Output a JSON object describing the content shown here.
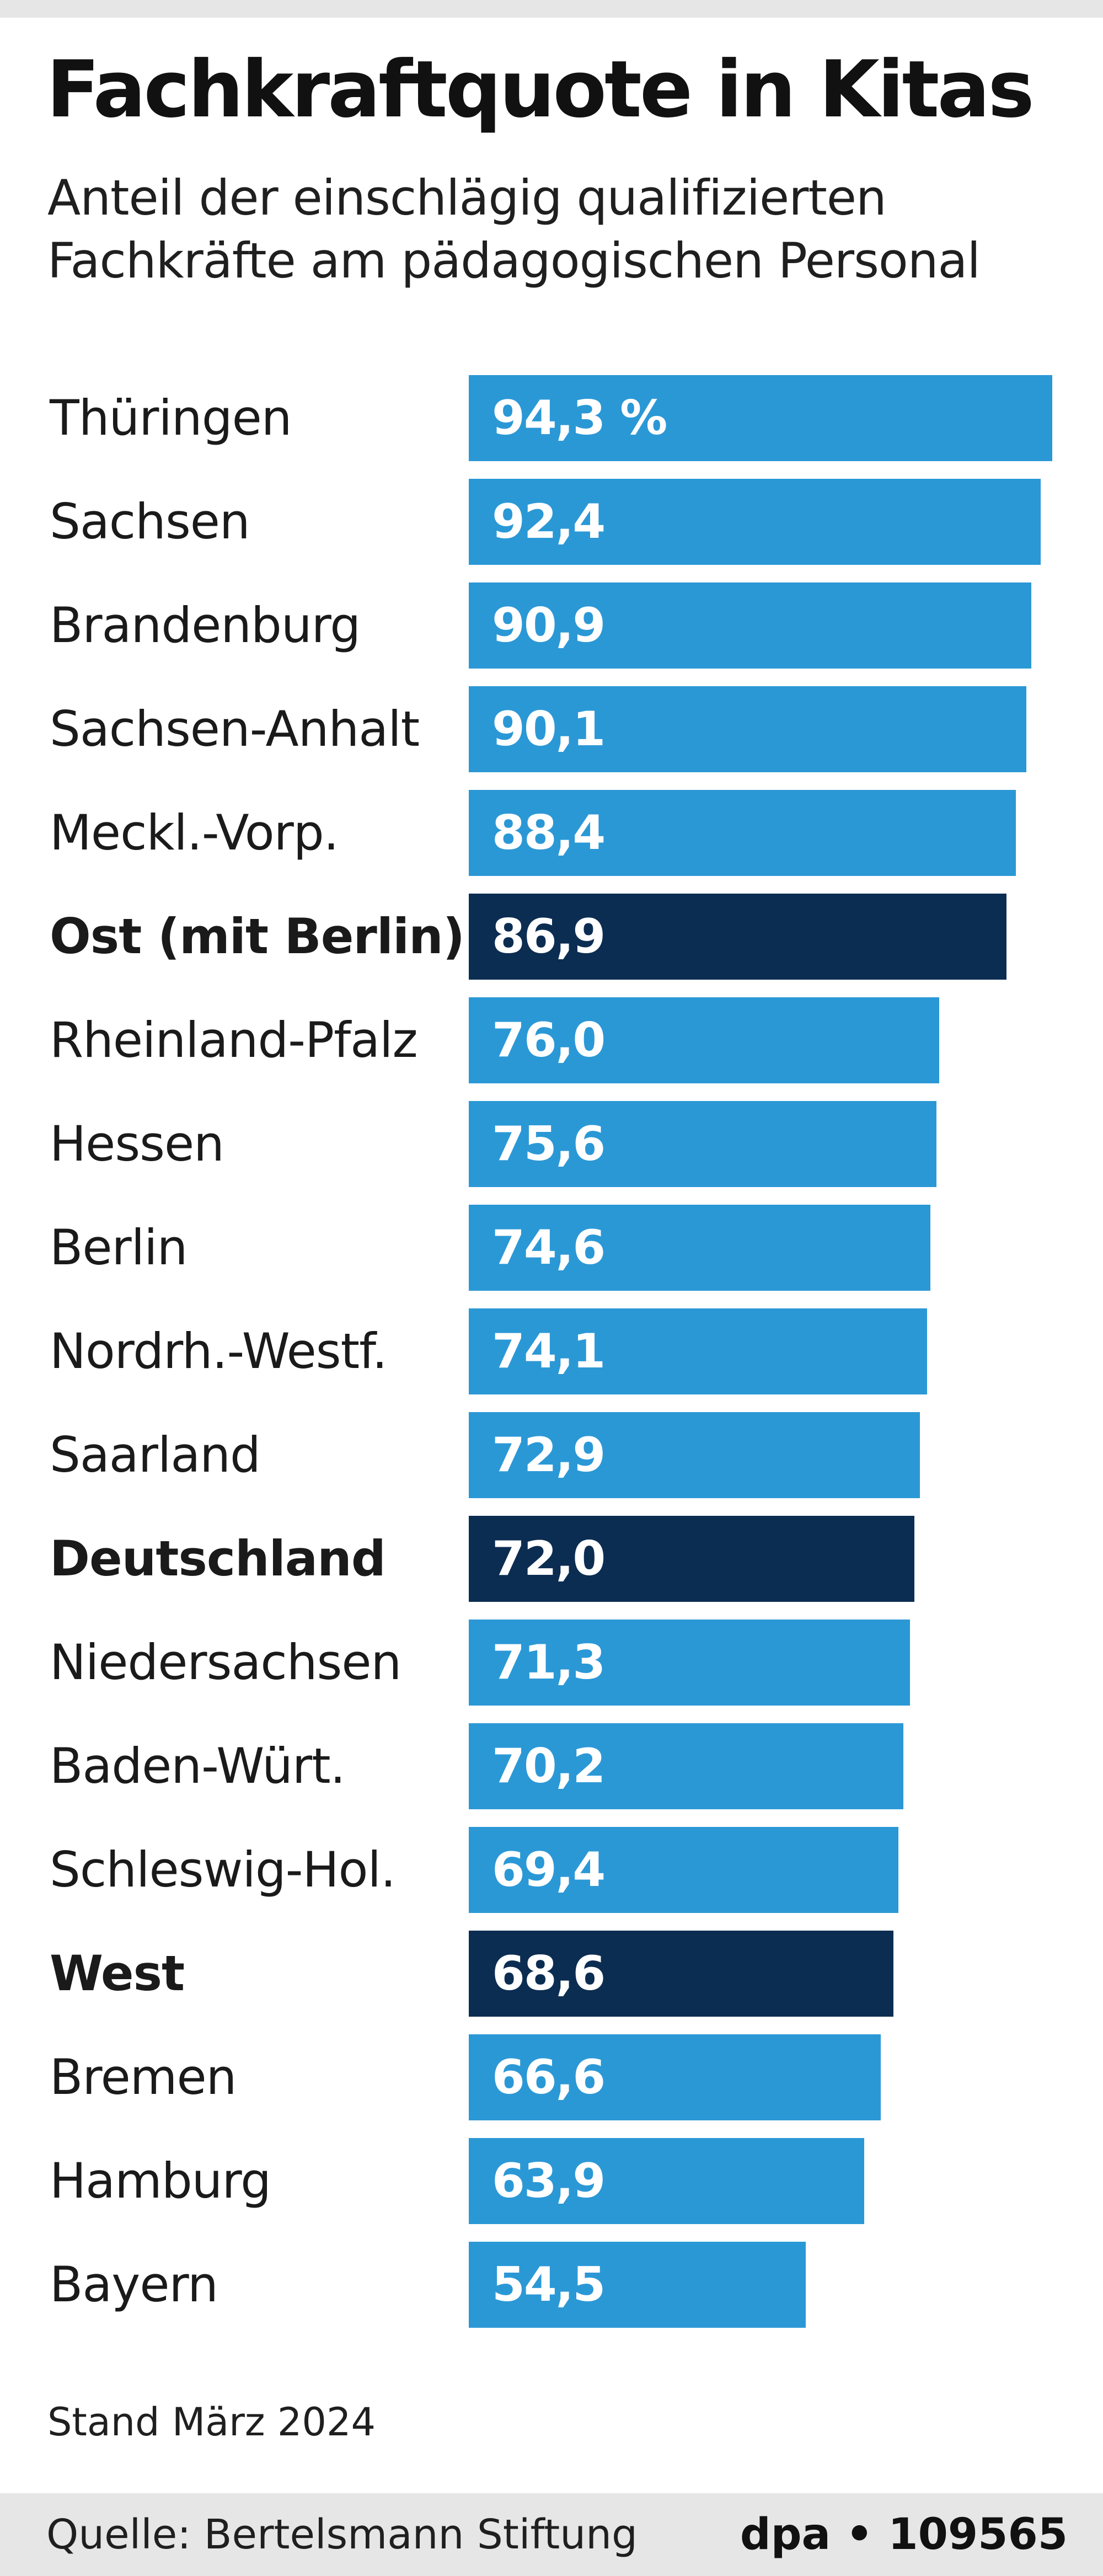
{
  "header": {
    "title": "Fachkraftquote in Kitas",
    "subtitle_line1": "Anteil der einschlägig qualifizierten",
    "subtitle_line2": "Fachkräfte am pädagogischen Personal"
  },
  "chart_data": {
    "type": "bar",
    "orientation": "horizontal",
    "title": "Fachkraftquote in Kitas",
    "subtitle": "Anteil der einschlägig qualifizierten Fachkräfte am pädagogischen Personal",
    "unit": "%",
    "categories": [
      "Thüringen",
      "Sachsen",
      "Brandenburg",
      "Sachsen-Anhalt",
      "Meckl.-Vorp.",
      "Ost (mit Berlin)",
      "Rheinland-Pfalz",
      "Hessen",
      "Berlin",
      "Nordrh.-Westf.",
      "Saarland",
      "Deutschland",
      "Niedersachsen",
      "Baden-Würt.",
      "Schleswig-Hol.",
      "West",
      "Bremen",
      "Hamburg",
      "Bayern"
    ],
    "values": [
      94.3,
      92.4,
      90.9,
      90.1,
      88.4,
      86.9,
      76.0,
      75.6,
      74.6,
      74.1,
      72.9,
      72.0,
      71.3,
      70.2,
      69.4,
      68.6,
      66.6,
      63.9,
      54.5
    ],
    "value_labels": [
      "94,3 %",
      "92,4",
      "90,9",
      "90,1",
      "88,4",
      "86,9",
      "76,0",
      "75,6",
      "74,6",
      "74,1",
      "72,9",
      "72,0",
      "71,3",
      "70,2",
      "69,4",
      "68,6",
      "66,6",
      "63,9",
      "54,5"
    ],
    "highlighted": [
      false,
      false,
      false,
      false,
      false,
      true,
      false,
      false,
      false,
      false,
      false,
      true,
      false,
      false,
      false,
      true,
      false,
      false,
      false
    ],
    "colors": {
      "bar": "#2b98d6",
      "highlight": "#0c2d52",
      "value_text": "#ffffff"
    },
    "xlim": [
      0,
      94.3
    ],
    "grid": false,
    "legend": "none"
  },
  "footer": {
    "note": "Stand März 2024",
    "source": "Quelle: Bertelsmann Stiftung",
    "credit": "dpa • 109565"
  }
}
